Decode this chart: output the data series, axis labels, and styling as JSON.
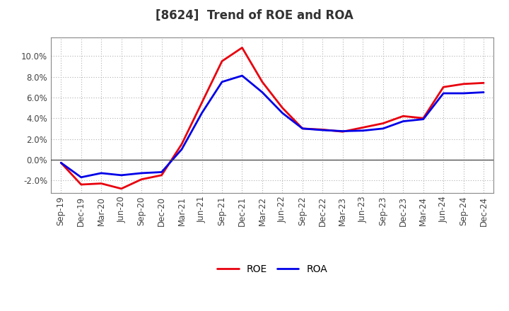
{
  "title": "[8624]  Trend of ROE and ROA",
  "labels": [
    "Sep-19",
    "Dec-19",
    "Mar-20",
    "Jun-20",
    "Sep-20",
    "Dec-20",
    "Mar-21",
    "Jun-21",
    "Sep-21",
    "Dec-21",
    "Mar-22",
    "Jun-22",
    "Sep-22",
    "Dec-22",
    "Mar-23",
    "Jun-23",
    "Sep-23",
    "Dec-23",
    "Mar-24",
    "Jun-24",
    "Sep-24",
    "Dec-24"
  ],
  "ROE": [
    -0.3,
    -2.4,
    -2.3,
    -2.8,
    -1.9,
    -1.5,
    1.5,
    5.5,
    9.5,
    10.8,
    7.5,
    5.0,
    3.0,
    2.9,
    2.7,
    3.1,
    3.5,
    4.2,
    4.0,
    7.0,
    7.3,
    7.4
  ],
  "ROA": [
    -0.3,
    -1.7,
    -1.3,
    -1.5,
    -1.3,
    -1.2,
    1.0,
    4.5,
    7.5,
    8.1,
    6.5,
    4.5,
    3.0,
    2.85,
    2.75,
    2.8,
    3.0,
    3.7,
    3.9,
    6.4,
    6.4,
    6.5
  ],
  "roe_color": "#e8000d",
  "roa_color": "#0000e8",
  "background_color": "#ffffff",
  "grid_color": "#b0b0b0",
  "ylim": [
    -3.2,
    11.8
  ],
  "yticks": [
    -2.0,
    0.0,
    2.0,
    4.0,
    6.0,
    8.0,
    10.0
  ],
  "line_width": 2.0,
  "title_fontsize": 12,
  "legend_fontsize": 10,
  "tick_fontsize": 8.5
}
